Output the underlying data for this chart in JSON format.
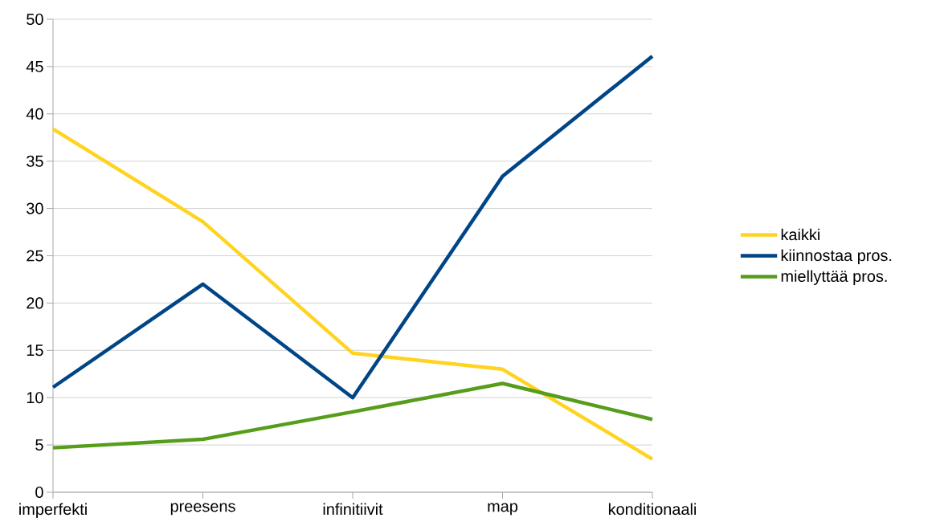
{
  "chart_data": {
    "type": "line",
    "categories": [
      "imperfekti",
      "preesens",
      "infinitiivit",
      "map",
      "konditionaali"
    ],
    "series": [
      {
        "name": "kaikki",
        "color": "#ffd320",
        "values": [
          38.4,
          28.6,
          14.7,
          13.0,
          3.5
        ]
      },
      {
        "name": "kiinnostaa pros.",
        "color": "#004586",
        "values": [
          11.1,
          22.0,
          10.0,
          33.4,
          46.1
        ]
      },
      {
        "name": "miellyttää pros.",
        "color": "#579d1c",
        "values": [
          4.7,
          5.6,
          8.5,
          11.5,
          7.7
        ]
      }
    ],
    "ylim": [
      0,
      50
    ],
    "yticks": [
      0,
      5,
      10,
      15,
      20,
      25,
      30,
      35,
      40,
      45,
      50
    ],
    "grid": "y",
    "legend": "right",
    "marker": "none",
    "line_style": "solid"
  }
}
